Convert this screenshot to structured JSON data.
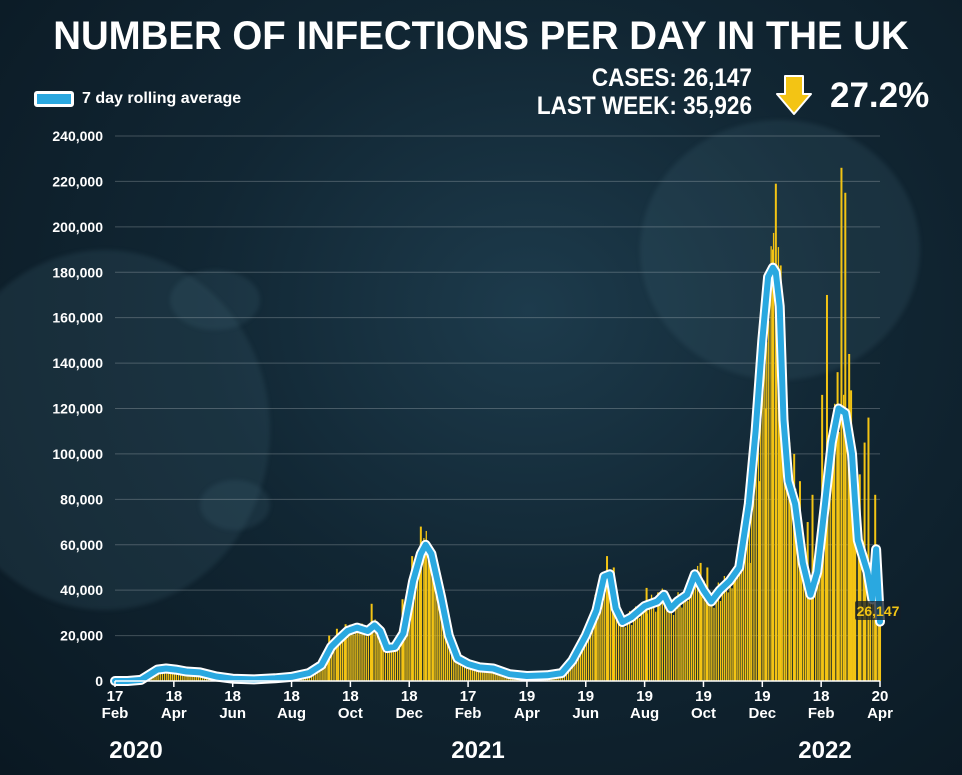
{
  "header": {
    "title": "NUMBER OF INFECTIONS PER DAY IN THE UK",
    "legend_label": "7 day rolling average",
    "cases_line": "CASES: 26,147",
    "last_week_line": "LAST WEEK: 35,926",
    "change_percent": "27.2%",
    "change_direction": "down",
    "latest_value_label": "26,147"
  },
  "colors": {
    "bars": "#f3c414",
    "line": "#2aa8e0",
    "line_outline": "#ffffff",
    "arrow": "#f3c414",
    "background": "#112633"
  },
  "chart_data": {
    "type": "bar",
    "title": "NUMBER OF INFECTIONS PER DAY IN THE UK",
    "xlabel": "",
    "ylabel": "",
    "ylim": [
      0,
      240000
    ],
    "grid": true,
    "legend_placement": "top-left",
    "y_ticks": [
      "0",
      "20,000",
      "40,000",
      "60,000",
      "80,000",
      "100,000",
      "120,000",
      "140,000",
      "160,000",
      "180,000",
      "200,000",
      "220,000",
      "240,000"
    ],
    "x_ticks": [
      {
        "day": "17",
        "month": "Feb"
      },
      {
        "day": "18",
        "month": "Apr"
      },
      {
        "day": "18",
        "month": "Jun"
      },
      {
        "day": "18",
        "month": "Aug"
      },
      {
        "day": "18",
        "month": "Oct"
      },
      {
        "day": "18",
        "month": "Dec"
      },
      {
        "day": "17",
        "month": "Feb"
      },
      {
        "day": "19",
        "month": "Apr"
      },
      {
        "day": "19",
        "month": "Jun"
      },
      {
        "day": "19",
        "month": "Aug"
      },
      {
        "day": "19",
        "month": "Oct"
      },
      {
        "day": "19",
        "month": "Dec"
      },
      {
        "day": "18",
        "month": "Feb"
      },
      {
        "day": "20",
        "month": "Apr"
      }
    ],
    "years": [
      "2020",
      "2021",
      "2022"
    ],
    "series": [
      {
        "name": "7 day rolling average",
        "type": "line",
        "x": [
          "2020-02-17",
          "2020-03-01",
          "2020-03-15",
          "2020-04-01",
          "2020-04-10",
          "2020-04-20",
          "2020-05-01",
          "2020-05-15",
          "2020-06-01",
          "2020-06-18",
          "2020-07-10",
          "2020-08-01",
          "2020-08-18",
          "2020-09-05",
          "2020-09-18",
          "2020-09-28",
          "2020-10-05",
          "2020-10-15",
          "2020-10-25",
          "2020-11-05",
          "2020-11-12",
          "2020-11-18",
          "2020-11-25",
          "2020-12-03",
          "2020-12-12",
          "2020-12-22",
          "2020-12-30",
          "2021-01-04",
          "2021-01-10",
          "2021-01-20",
          "2021-01-28",
          "2021-02-06",
          "2021-02-17",
          "2021-03-01",
          "2021-03-15",
          "2021-04-01",
          "2021-04-19",
          "2021-05-10",
          "2021-05-25",
          "2021-06-05",
          "2021-06-19",
          "2021-06-30",
          "2021-07-08",
          "2021-07-14",
          "2021-07-20",
          "2021-07-27",
          "2021-08-05",
          "2021-08-19",
          "2021-09-01",
          "2021-09-08",
          "2021-09-15",
          "2021-09-22",
          "2021-10-02",
          "2021-10-10",
          "2021-10-19",
          "2021-10-27",
          "2021-11-05",
          "2021-11-15",
          "2021-11-25",
          "2021-12-05",
          "2021-12-12",
          "2021-12-19",
          "2021-12-25",
          "2021-12-30",
          "2022-01-02",
          "2022-01-06",
          "2022-01-10",
          "2022-01-15",
          "2022-01-22",
          "2022-01-30",
          "2022-02-07",
          "2022-02-14",
          "2022-02-22",
          "2022-03-01",
          "2022-03-08",
          "2022-03-15",
          "2022-03-22",
          "2022-03-25",
          "2022-03-28",
          "2022-04-02",
          "2022-04-07",
          "2022-04-12",
          "2022-04-16",
          "2022-04-20"
        ],
        "values": [
          0,
          0,
          500,
          5000,
          5500,
          5000,
          4200,
          3800,
          2000,
          1000,
          700,
          1200,
          1800,
          3500,
          7000,
          15000,
          18000,
          22000,
          23500,
          22000,
          24500,
          22000,
          14500,
          15000,
          21000,
          44000,
          56000,
          60000,
          56000,
          37000,
          20000,
          10000,
          7500,
          6000,
          5500,
          3000,
          2200,
          2500,
          3500,
          9000,
          20000,
          31000,
          46000,
          47000,
          32000,
          26000,
          28000,
          33000,
          35000,
          38000,
          32000,
          35000,
          38000,
          47000,
          40000,
          35000,
          40000,
          44000,
          50000,
          78000,
          110000,
          150000,
          178000,
          182000,
          180000,
          165000,
          115000,
          88000,
          78000,
          52000,
          38000,
          48000,
          78000,
          105000,
          120000,
          118000,
          100000,
          80000,
          62000,
          55000,
          48000,
          35926,
          58000,
          26147
        ]
      },
      {
        "name": "",
        "type": "bar",
        "note_values": "daily cases, approximate spikes",
        "x": [
          "2020-09-25",
          "2020-10-03",
          "2020-10-12",
          "2020-11-08",
          "2020-11-18",
          "2020-12-10",
          "2020-12-20",
          "2020-12-29",
          "2021-01-03",
          "2021-01-06",
          "2021-01-10",
          "2021-06-28",
          "2021-07-10",
          "2021-07-17",
          "2021-08-20",
          "2021-09-01",
          "2021-10-15",
          "2021-10-22",
          "2021-11-20",
          "2021-12-05",
          "2021-12-15",
          "2021-12-22",
          "2021-12-29",
          "2022-01-01",
          "2022-01-04",
          "2022-01-06",
          "2022-01-10",
          "2022-01-15",
          "2022-01-20",
          "2022-01-26",
          "2022-02-03",
          "2022-02-08",
          "2022-02-18",
          "2022-02-23",
          "2022-03-02",
          "2022-03-06",
          "2022-03-10",
          "2022-03-14",
          "2022-03-18",
          "2022-03-20",
          "2022-03-23",
          "2022-03-29",
          "2022-04-03",
          "2022-04-07",
          "2022-04-11",
          "2022-04-14",
          "2022-04-19"
        ],
        "values": [
          20000,
          23000,
          25000,
          34000,
          24000,
          36000,
          55000,
          68000,
          58000,
          60000,
          55000,
          38000,
          55000,
          50000,
          41000,
          39000,
          52000,
          50000,
          46000,
          52000,
          88000,
          120000,
          190000,
          219000,
          178000,
          183000,
          130000,
          105000,
          100000,
          88000,
          70000,
          82000,
          126000,
          170000,
          95000,
          136000,
          226000,
          215000,
          144000,
          128000,
          76000,
          91000,
          105000,
          116000,
          0,
          82000,
          29000
        ]
      }
    ]
  }
}
